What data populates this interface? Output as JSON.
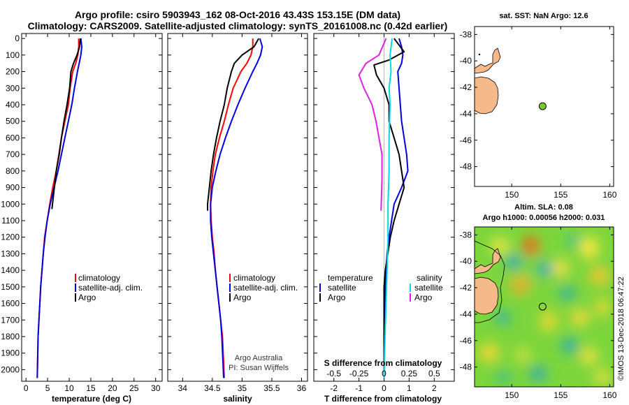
{
  "header": {
    "line1": "Argo profile: csiro 5903943_162 08-Oct-2016 43.43S 153.15E (DM data)",
    "line2": "Climatology: CARS2009. Satellite-adjusted climatology: synTS_20161008.nc (0.42d earlier)"
  },
  "colors": {
    "climatology": "#ff0000",
    "satellite": "#0000dd",
    "argo": "#000000",
    "sat_salinity": "#00d8e8",
    "argo_salinity": "#e020e0",
    "land": "#f5b98a",
    "float_marker": "#7cc830"
  },
  "depth_axis": {
    "ticks": [
      "0",
      "100",
      "200",
      "300",
      "400",
      "500",
      "600",
      "700",
      "800",
      "900",
      "1000",
      "1100",
      "1200",
      "1300",
      "1400",
      "1500",
      "1600",
      "1700",
      "1800",
      "1900",
      "2000"
    ]
  },
  "chart_data": [
    {
      "type": "line",
      "title": "",
      "xlabel": "temperature (deg C)",
      "ylabel": "depth",
      "xlim": [
        -1,
        31.5
      ],
      "ylim": [
        2070,
        -30
      ],
      "xticks": [
        "0",
        "5",
        "10",
        "15",
        "20",
        "25",
        "30"
      ],
      "xtick_values": [
        0,
        5,
        10,
        15,
        20,
        25,
        30
      ],
      "legend": [
        "climatology",
        "satellite-adj. clim.",
        "Argo"
      ],
      "series": [
        {
          "name": "climatology",
          "color_key": "climatology",
          "x": [
            12.2,
            12.2,
            12.0,
            11.5,
            10.8,
            10.2,
            9.8,
            9.0,
            8.2,
            7.6,
            7.0,
            6.2,
            5.5,
            4.9,
            4.3,
            4.0,
            3.7,
            3.4,
            3.2,
            3.0,
            2.8,
            2.6
          ],
          "y": [
            0,
            50,
            100,
            150,
            200,
            300,
            400,
            500,
            600,
            700,
            800,
            900,
            1000,
            1100,
            1200,
            1300,
            1400,
            1500,
            1600,
            1700,
            1800,
            2050
          ]
        },
        {
          "name": "satellite-adj. clim.",
          "color_key": "satellite",
          "x": [
            12.7,
            12.9,
            12.7,
            12.3,
            11.9,
            11.2,
            10.6,
            9.8,
            9.0,
            8.2,
            7.4,
            6.5,
            5.6,
            4.9,
            4.4,
            4.0,
            3.7,
            3.4,
            3.2,
            3.0,
            2.8,
            2.6
          ],
          "y": [
            0,
            50,
            100,
            150,
            200,
            300,
            400,
            500,
            600,
            700,
            800,
            900,
            1000,
            1100,
            1200,
            1300,
            1400,
            1500,
            1600,
            1700,
            1800,
            2050
          ]
        },
        {
          "name": "Argo",
          "color_key": "argo",
          "x": [
            12.6,
            12.4,
            11.8,
            11.0,
            10.4,
            10.1,
            9.5,
            8.8,
            8.2,
            7.7,
            7.0,
            6.0
          ],
          "y": [
            0,
            50,
            100,
            150,
            200,
            300,
            400,
            500,
            600,
            700,
            800,
            1030
          ]
        }
      ]
    },
    {
      "type": "line",
      "title": "",
      "xlabel": "salinity",
      "ylabel": "depth",
      "xlim": [
        33.75,
        36.1
      ],
      "ylim": [
        2070,
        -30
      ],
      "xticks": [
        "34",
        "34.5",
        "35",
        "35.5",
        "36"
      ],
      "xtick_values": [
        34,
        34.5,
        35,
        35.5,
        36
      ],
      "legend": [
        "climatology",
        "satellite-adj. clim.",
        "Argo"
      ],
      "credit": [
        "Argo Australia",
        "PI: Susan Wijffels"
      ],
      "series": [
        {
          "name": "climatology",
          "color_key": "climatology",
          "x": [
            35.18,
            35.18,
            35.15,
            35.08,
            34.98,
            34.85,
            34.77,
            34.7,
            34.62,
            34.55,
            34.51,
            34.48,
            34.47,
            34.48,
            34.5,
            34.53,
            34.55,
            34.58,
            34.61,
            34.64,
            34.67,
            34.7
          ],
          "y": [
            0,
            50,
            100,
            150,
            200,
            300,
            400,
            500,
            600,
            700,
            800,
            900,
            1000,
            1100,
            1200,
            1300,
            1400,
            1500,
            1600,
            1700,
            1800,
            2050
          ]
        },
        {
          "name": "satellite-adj. clim.",
          "color_key": "satellite",
          "x": [
            35.3,
            35.34,
            35.31,
            35.25,
            35.18,
            35.05,
            34.93,
            34.82,
            34.72,
            34.63,
            34.56,
            34.5,
            34.47,
            34.47,
            34.49,
            34.52,
            34.55,
            34.58,
            34.61,
            34.64,
            34.66,
            34.69
          ],
          "y": [
            0,
            50,
            100,
            150,
            200,
            300,
            400,
            500,
            600,
            700,
            800,
            900,
            1000,
            1100,
            1200,
            1300,
            1400,
            1500,
            1600,
            1700,
            1800,
            2050
          ]
        },
        {
          "name": "Argo",
          "color_key": "argo",
          "x": [
            35.28,
            35.2,
            35.0,
            34.87,
            34.82,
            34.75,
            34.7,
            34.63,
            34.57,
            34.52,
            34.48,
            34.45,
            34.42,
            34.42
          ],
          "y": [
            0,
            50,
            100,
            150,
            200,
            300,
            400,
            500,
            600,
            700,
            800,
            900,
            1000,
            1040
          ]
        }
      ]
    },
    {
      "type": "line",
      "title": "",
      "xlabel": "T difference from climatology",
      "xlabel2": "S difference from climatology",
      "ylabel": "depth",
      "xlim": [
        -2.8,
        2.8
      ],
      "ylim": [
        2070,
        -30
      ],
      "xticks": [
        "-2",
        "-1",
        "0",
        "1",
        "2"
      ],
      "xtick_values": [
        -2,
        -1,
        0,
        1,
        2
      ],
      "xticks_s": [
        "-0.5",
        "-0.25",
        "0",
        "0.25",
        "0.5"
      ],
      "xtick_values_s": [
        -0.5,
        -0.25,
        0,
        0.25,
        0.5
      ],
      "legend_left": [
        "temperature",
        "satellite",
        "Argo"
      ],
      "legend_right": [
        "salinity",
        "satellite",
        "Argo"
      ],
      "series": [
        {
          "name": "T satellite",
          "color_key": "satellite",
          "x": [
            0.6,
            0.7,
            0.75,
            0.7,
            0.55,
            0.6,
            0.65,
            0.7,
            0.8,
            0.9,
            0.95,
            0.7,
            0.4,
            0.3,
            0.2,
            0.12,
            0.08,
            0.05,
            0.04,
            0.03,
            0.02,
            0.0
          ],
          "y": [
            0,
            50,
            100,
            150,
            200,
            300,
            400,
            500,
            600,
            700,
            800,
            900,
            1000,
            1100,
            1200,
            1300,
            1400,
            1500,
            1600,
            1700,
            1800,
            2050
          ]
        },
        {
          "name": "T Argo",
          "color_key": "argo",
          "x": [
            0.4,
            0.8,
            0.2,
            -0.4,
            -0.3,
            0.0,
            0.2,
            0.2,
            0.4,
            0.6,
            0.7,
            0.8,
            0.6,
            0.4,
            0.25,
            0.15,
            0.05,
            0.0,
            0.0,
            0.0
          ],
          "y": [
            0,
            80,
            130,
            160,
            220,
            300,
            400,
            500,
            600,
            700,
            800,
            900,
            1000,
            1100,
            1200,
            1300,
            1400,
            1500,
            1700,
            2040
          ]
        },
        {
          "name": "S satellite",
          "color_key": "sat_salinity",
          "x": [
            0.08,
            0.06,
            0.07,
            0.05,
            0.06,
            0.05,
            0.05,
            0.04,
            0.04,
            0.03,
            0.02,
            0.01,
            0.0
          ],
          "y": [
            0,
            100,
            200,
            300,
            400,
            600,
            800,
            1000,
            1200,
            1400,
            1600,
            1800,
            2050
          ]
        },
        {
          "name": "S Argo",
          "color_key": "argo_salinity",
          "x": [
            0.02,
            -0.05,
            -0.18,
            -0.25,
            -0.2,
            -0.12,
            -0.08,
            -0.05,
            -0.02,
            -0.02,
            -0.03
          ],
          "y": [
            0,
            100,
            150,
            220,
            300,
            400,
            500,
            600,
            700,
            850,
            1040
          ]
        }
      ]
    }
  ],
  "map_top": {
    "title": "sat. SST: NaN Argo: 12.6",
    "yticks": [
      "-38",
      "-40",
      "-42",
      "-44",
      "-46",
      "-48"
    ],
    "ytick_values": [
      -38,
      -40,
      -42,
      -44,
      -46,
      -48
    ],
    "xticks": [
      "150",
      "155",
      "160"
    ],
    "xtick_values": [
      150,
      155,
      160
    ],
    "xlim": [
      146.2,
      160.4
    ],
    "ylim": [
      -37.4,
      -49.5
    ],
    "float": {
      "lon": 153.15,
      "lat": -43.43
    }
  },
  "map_bottom": {
    "title1": "Altim. SLA: 0.08",
    "title2": "Argo h1000: 0.00056 h2000: 0.031",
    "yticks": [
      "-38",
      "-40",
      "-42",
      "-44",
      "-46",
      "-48"
    ],
    "ytick_values": [
      -38,
      -40,
      -42,
      -44,
      -46,
      -48
    ],
    "xticks": [
      "150",
      "155",
      "160"
    ],
    "xtick_values": [
      150,
      155,
      160
    ],
    "xlim": [
      146.2,
      160.4
    ],
    "ylim": [
      -37.4,
      -49.5
    ],
    "float": {
      "lon": 153.15,
      "lat": -43.43
    }
  },
  "watermark": "©IMOS 13-Dec-2018 06:47:22"
}
